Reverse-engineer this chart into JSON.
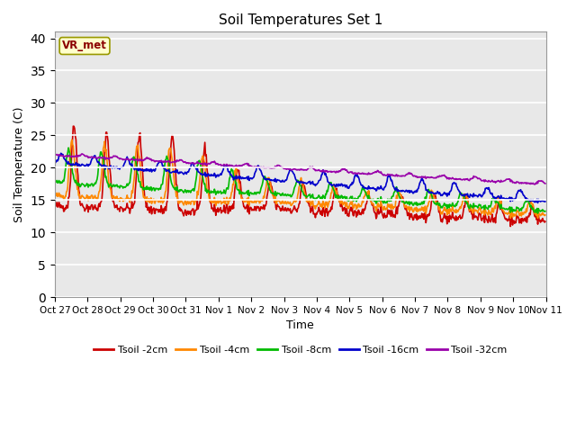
{
  "title": "Soil Temperatures Set 1",
  "xlabel": "Time",
  "ylabel": "Soil Temperature (C)",
  "ylim": [
    0,
    41
  ],
  "yticks": [
    0,
    5,
    10,
    15,
    20,
    25,
    30,
    35,
    40
  ],
  "xlabels": [
    "Oct 27",
    "Oct 28",
    "Oct 29",
    "Oct 30",
    "Oct 31",
    "Nov 1",
    "Nov 2",
    "Nov 3",
    "Nov 4",
    "Nov 5",
    "Nov 6",
    "Nov 7",
    "Nov 8",
    "Nov 9",
    "Nov 10",
    "Nov 11"
  ],
  "colors": {
    "2cm": "#cc0000",
    "4cm": "#ff8800",
    "8cm": "#00bb00",
    "16cm": "#0000cc",
    "32cm": "#9900aa"
  },
  "annotation_text": "VR_met",
  "annotation_color": "#8b0000",
  "bg_color": "#e8e8e8",
  "fig_bg": "#ffffff",
  "lw": 1.2
}
